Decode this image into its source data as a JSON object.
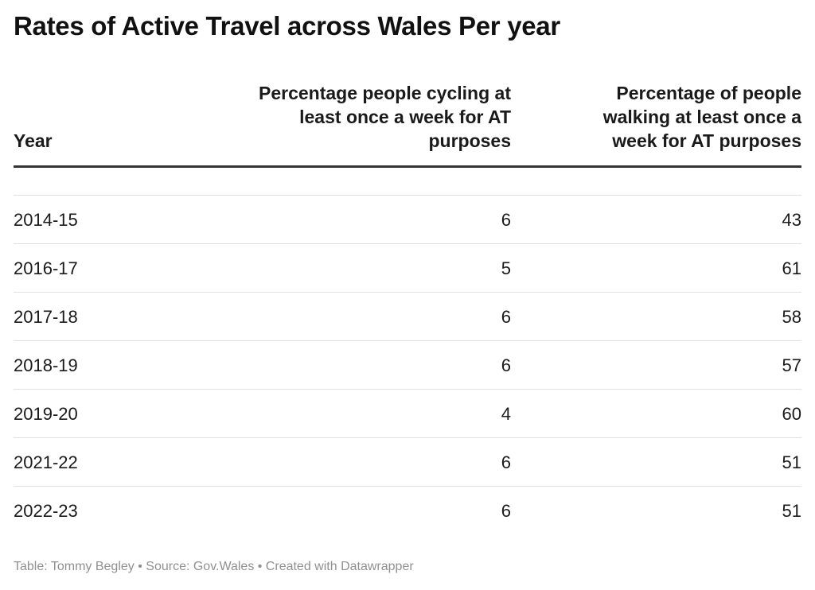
{
  "chart_data": {
    "type": "table",
    "title": "Rates of Active Travel across Wales Per year",
    "columns": [
      "Year",
      "Percentage people cycling at least once a week for AT purposes",
      "Percentage of people walking at least once a week for AT purposes"
    ],
    "rows": [
      {
        "year": "2014-15",
        "cycling": "6",
        "walking": "43"
      },
      {
        "year": "2016-17",
        "cycling": "5",
        "walking": "61"
      },
      {
        "year": "2017-18",
        "cycling": "6",
        "walking": "58"
      },
      {
        "year": "2018-19",
        "cycling": "6",
        "walking": "57"
      },
      {
        "year": "2019-20",
        "cycling": "4",
        "walking": "60"
      },
      {
        "year": "2021-22",
        "cycling": "6",
        "walking": "51"
      },
      {
        "year": "2022-23",
        "cycling": "6",
        "walking": "51"
      }
    ],
    "footer": "Table: Tommy Begley • Source: Gov.Wales • Created with Datawrapper"
  }
}
